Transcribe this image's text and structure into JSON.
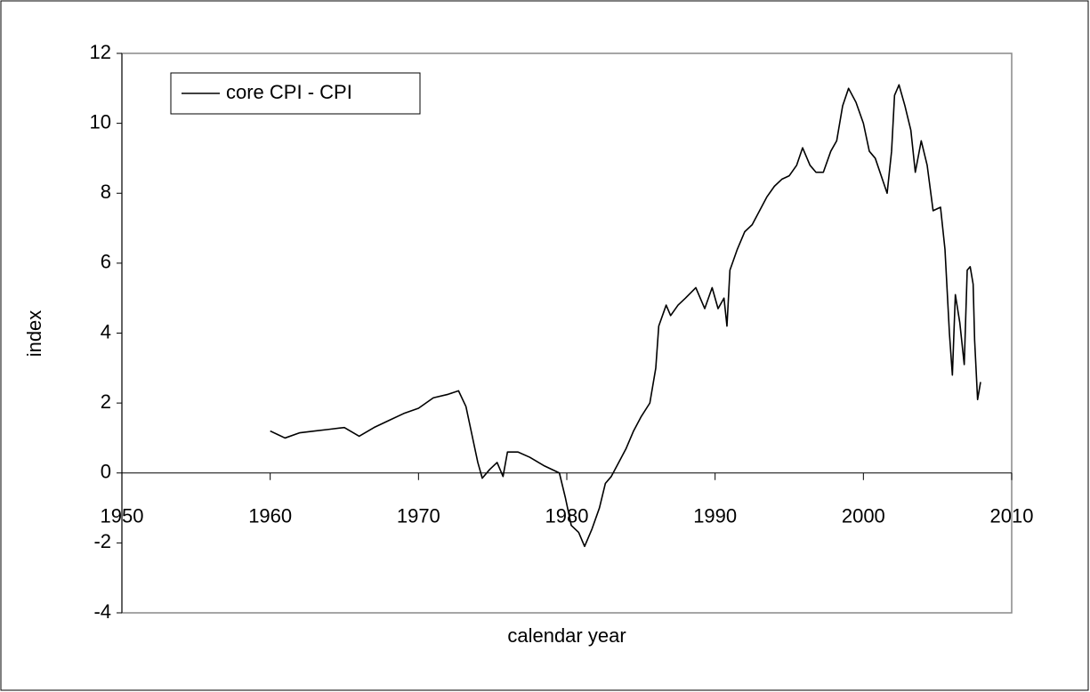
{
  "chart_data": {
    "type": "line",
    "x_label": "calendar year",
    "y_label": "index",
    "x": [
      1960.0,
      1960.5,
      1961,
      1962,
      1963,
      1964,
      1965,
      1966,
      1967,
      1968,
      1969,
      1970,
      1971,
      1972,
      1972.7,
      1973.2,
      1973.6,
      1974,
      1974.3,
      1974.8,
      1975.3,
      1975.7,
      1976,
      1976.7,
      1977.5,
      1978.5,
      1979.5,
      1979.9,
      1980.3,
      1980.8,
      1981.2,
      1981.7,
      1982.2,
      1982.6,
      1983,
      1983.5,
      1984,
      1984.5,
      1985,
      1985.6,
      1986,
      1986.2,
      1986.7,
      1987,
      1987.5,
      1988,
      1988.7,
      1989.3,
      1989.8,
      1990.2,
      1990.6,
      1990.8,
      1991,
      1991.5,
      1992,
      1992.5,
      1993,
      1993.5,
      1994,
      1994.5,
      1995,
      1995.5,
      1995.9,
      1996.4,
      1996.8,
      1997.3,
      1997.8,
      1998.2,
      1998.6,
      1999,
      1999.5,
      2000,
      2000.4,
      2000.8,
      2001.2,
      2001.6,
      2001.9,
      2002.1,
      2002.4,
      2002.8,
      2003.2,
      2003.5,
      2003.9,
      2004.3,
      2004.7,
      2005.2,
      2005.5,
      2005.8,
      2006,
      2006.2,
      2006.5,
      2006.8,
      2007,
      2007.2,
      2007.4,
      2007.5,
      2007.7,
      2007.9
    ],
    "series": [
      {
        "name": "core CPI - CPI",
        "color": "#000000",
        "values": [
          1.2,
          1.1,
          1.0,
          1.15,
          1.2,
          1.25,
          1.3,
          1.05,
          1.3,
          1.5,
          1.7,
          1.85,
          2.15,
          2.25,
          2.35,
          1.9,
          1.1,
          0.3,
          -0.15,
          0.1,
          0.3,
          -0.1,
          0.6,
          0.6,
          0.45,
          0.2,
          0,
          -0.7,
          -1.5,
          -1.7,
          -2.1,
          -1.6,
          -1.0,
          -0.3,
          -0.1,
          0.3,
          0.7,
          1.2,
          1.6,
          2.0,
          3.0,
          4.2,
          4.8,
          4.5,
          4.8,
          5.0,
          5.3,
          4.7,
          5.3,
          4.7,
          5.0,
          4.2,
          5.8,
          6.4,
          6.9,
          7.1,
          7.5,
          7.9,
          8.2,
          8.4,
          8.5,
          8.8,
          9.3,
          8.8,
          8.6,
          8.6,
          9.2,
          9.5,
          10.5,
          11.0,
          10.6,
          10.0,
          9.2,
          9.0,
          8.5,
          8.0,
          9.2,
          10.8,
          11.1,
          10.5,
          9.8,
          8.6,
          9.5,
          8.8,
          7.5,
          7.6,
          6.4,
          4.0,
          2.8,
          5.1,
          4.3,
          3.1,
          5.8,
          5.9,
          5.4,
          3.8,
          2.1,
          2.6
        ]
      }
    ],
    "xlim": [
      1950,
      2010
    ],
    "xticks": [
      1950,
      1960,
      1970,
      1980,
      1990,
      2000,
      2010
    ],
    "ylim": [
      -4,
      12
    ],
    "yticks": [
      -4,
      -2,
      0,
      2,
      4,
      6,
      8,
      10,
      12
    ],
    "legend": "upper left"
  }
}
